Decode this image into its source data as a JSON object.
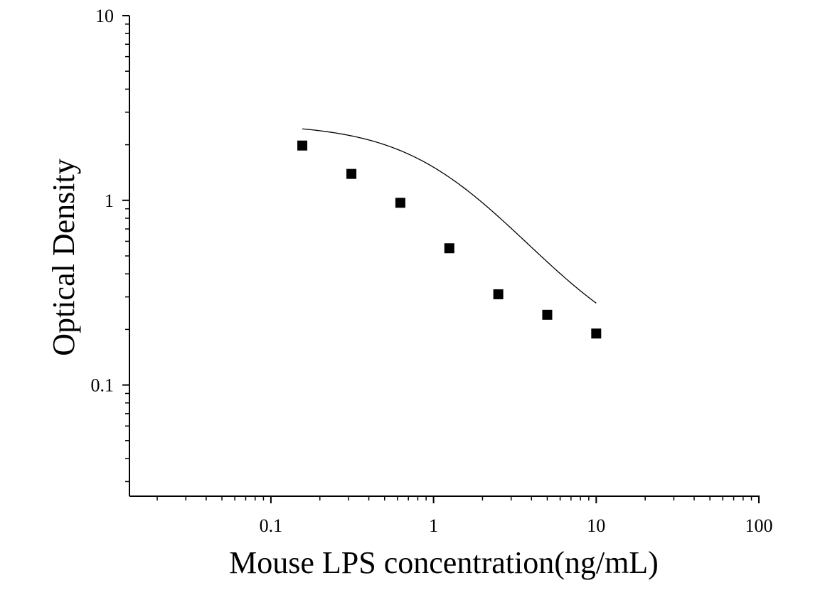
{
  "chart_data": {
    "type": "scatter",
    "title": "",
    "xlabel": "Mouse LPS concentration(ng/mL)",
    "ylabel": "Optical Density",
    "xscale": "log",
    "yscale": "log",
    "xlim": [
      0.0135,
      100
    ],
    "ylim": [
      0.025,
      10
    ],
    "x_ticks": [
      {
        "value": 0.1,
        "label": "0.1"
      },
      {
        "value": 1,
        "label": "1"
      },
      {
        "value": 10,
        "label": "10"
      },
      {
        "value": 100,
        "label": "100"
      }
    ],
    "y_ticks": [
      {
        "value": 0.1,
        "label": "0.1"
      },
      {
        "value": 1,
        "label": "1"
      },
      {
        "value": 10,
        "label": "10"
      }
    ],
    "series": [
      {
        "marker": "square",
        "x": [
          0.156,
          0.3125,
          0.625,
          1.25,
          2.5,
          5,
          10
        ],
        "y": [
          1.98,
          1.39,
          0.97,
          0.55,
          0.31,
          0.24,
          0.19
        ]
      }
    ],
    "fit_curve": {
      "type": "4PL",
      "A": 2.6,
      "B": 1.3,
      "C": 1.2,
      "D": 0.13,
      "x_range": [
        0.156,
        10
      ]
    },
    "grid": false,
    "legend": "none",
    "colors": {
      "axis": "#000000",
      "marker": "#000000",
      "curve": "#000000"
    }
  }
}
